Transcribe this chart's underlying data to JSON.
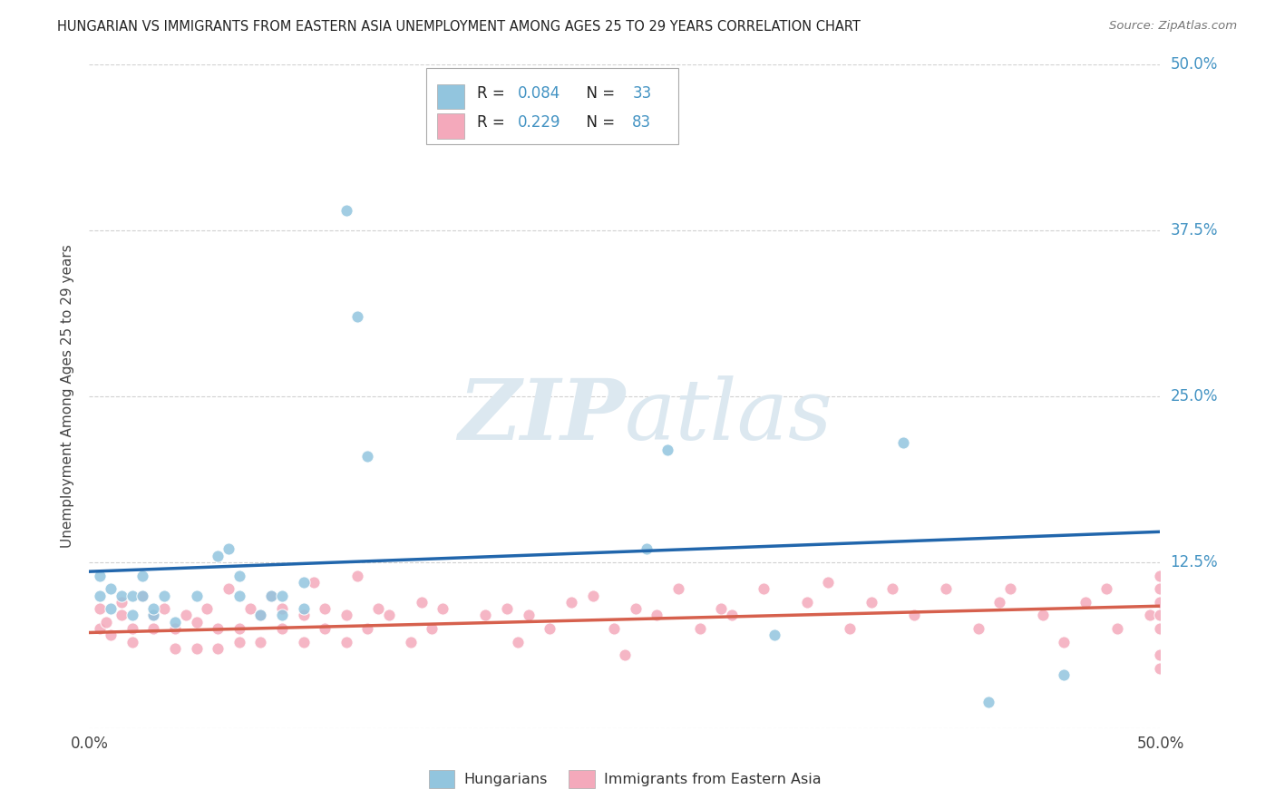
{
  "title": "HUNGARIAN VS IMMIGRANTS FROM EASTERN ASIA UNEMPLOYMENT AMONG AGES 25 TO 29 YEARS CORRELATION CHART",
  "source": "Source: ZipAtlas.com",
  "ylabel": "Unemployment Among Ages 25 to 29 years",
  "xlim": [
    0.0,
    0.5
  ],
  "ylim": [
    0.0,
    0.5
  ],
  "blue_R": 0.084,
  "blue_N": 33,
  "pink_R": 0.229,
  "pink_N": 83,
  "blue_color": "#92c5de",
  "pink_color": "#f4a9bb",
  "blue_line_color": "#2166ac",
  "pink_line_color": "#d6604d",
  "right_axis_color": "#4393c3",
  "watermark_color": "#dce8f0",
  "blue_trend_start": 0.118,
  "blue_trend_end": 0.148,
  "pink_trend_start": 0.072,
  "pink_trend_end": 0.092,
  "blue_scatter_x": [
    0.005,
    0.005,
    0.01,
    0.01,
    0.015,
    0.02,
    0.02,
    0.025,
    0.025,
    0.03,
    0.03,
    0.035,
    0.04,
    0.05,
    0.06,
    0.065,
    0.07,
    0.07,
    0.08,
    0.085,
    0.09,
    0.09,
    0.1,
    0.1,
    0.12,
    0.125,
    0.13,
    0.26,
    0.27,
    0.32,
    0.38,
    0.42,
    0.455
  ],
  "blue_scatter_y": [
    0.1,
    0.115,
    0.09,
    0.105,
    0.1,
    0.085,
    0.1,
    0.1,
    0.115,
    0.085,
    0.09,
    0.1,
    0.08,
    0.1,
    0.13,
    0.135,
    0.1,
    0.115,
    0.085,
    0.1,
    0.085,
    0.1,
    0.09,
    0.11,
    0.39,
    0.31,
    0.205,
    0.135,
    0.21,
    0.07,
    0.215,
    0.02,
    0.04
  ],
  "pink_scatter_x": [
    0.005,
    0.005,
    0.008,
    0.01,
    0.015,
    0.015,
    0.02,
    0.02,
    0.025,
    0.03,
    0.03,
    0.035,
    0.04,
    0.04,
    0.045,
    0.05,
    0.05,
    0.055,
    0.06,
    0.06,
    0.065,
    0.07,
    0.07,
    0.075,
    0.08,
    0.08,
    0.085,
    0.09,
    0.09,
    0.1,
    0.1,
    0.105,
    0.11,
    0.11,
    0.12,
    0.12,
    0.125,
    0.13,
    0.135,
    0.14,
    0.15,
    0.155,
    0.16,
    0.165,
    0.185,
    0.195,
    0.2,
    0.205,
    0.215,
    0.225,
    0.235,
    0.245,
    0.25,
    0.255,
    0.265,
    0.275,
    0.285,
    0.295,
    0.3,
    0.315,
    0.335,
    0.345,
    0.355,
    0.365,
    0.375,
    0.385,
    0.4,
    0.415,
    0.425,
    0.43,
    0.445,
    0.455,
    0.465,
    0.475,
    0.48,
    0.495,
    0.5,
    0.5,
    0.5,
    0.5,
    0.5,
    0.5,
    0.5
  ],
  "pink_scatter_y": [
    0.075,
    0.09,
    0.08,
    0.07,
    0.085,
    0.095,
    0.065,
    0.075,
    0.1,
    0.075,
    0.085,
    0.09,
    0.06,
    0.075,
    0.085,
    0.06,
    0.08,
    0.09,
    0.06,
    0.075,
    0.105,
    0.065,
    0.075,
    0.09,
    0.065,
    0.085,
    0.1,
    0.075,
    0.09,
    0.065,
    0.085,
    0.11,
    0.075,
    0.09,
    0.065,
    0.085,
    0.115,
    0.075,
    0.09,
    0.085,
    0.065,
    0.095,
    0.075,
    0.09,
    0.085,
    0.09,
    0.065,
    0.085,
    0.075,
    0.095,
    0.1,
    0.075,
    0.055,
    0.09,
    0.085,
    0.105,
    0.075,
    0.09,
    0.085,
    0.105,
    0.095,
    0.11,
    0.075,
    0.095,
    0.105,
    0.085,
    0.105,
    0.075,
    0.095,
    0.105,
    0.085,
    0.065,
    0.095,
    0.105,
    0.075,
    0.085,
    0.045,
    0.075,
    0.105,
    0.095,
    0.115,
    0.085,
    0.055
  ]
}
